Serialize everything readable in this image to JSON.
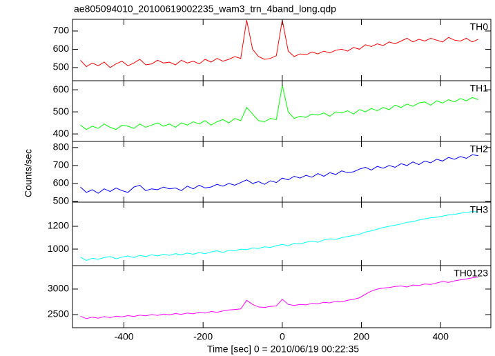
{
  "chart_data": [
    {
      "type": "line",
      "title": "ae805094010_20100619002235_wam3_trn_4band_long.qdp",
      "x": [
        -510,
        -495,
        -480,
        -465,
        -450,
        -435,
        -420,
        -405,
        -390,
        -375,
        -360,
        -345,
        -330,
        -315,
        -300,
        -285,
        -270,
        -255,
        -240,
        -225,
        -210,
        -195,
        -180,
        -165,
        -150,
        -135,
        -120,
        -105,
        -90,
        -75,
        -60,
        -45,
        -30,
        -15,
        0,
        15,
        30,
        45,
        60,
        75,
        90,
        105,
        120,
        135,
        150,
        165,
        180,
        195,
        210,
        225,
        240,
        255,
        270,
        285,
        300,
        315,
        330,
        345,
        360,
        375,
        390,
        405,
        420,
        435,
        450,
        465,
        480,
        495
      ],
      "series": [
        {
          "name": "TH0",
          "color": "#ff0000",
          "values": [
            540,
            505,
            525,
            510,
            530,
            500,
            520,
            535,
            510,
            525,
            545,
            515,
            520,
            540,
            525,
            530,
            515,
            540,
            525,
            535,
            520,
            545,
            530,
            550,
            535,
            545,
            560,
            550,
            760,
            600,
            560,
            545,
            550,
            565,
            760,
            590,
            560,
            575,
            570,
            585,
            575,
            590,
            580,
            595,
            600,
            590,
            610,
            600,
            625,
            615,
            630,
            620,
            640,
            630,
            645,
            660,
            640,
            655,
            645,
            660,
            650,
            640,
            665,
            650,
            645,
            660,
            640,
            655
          ]
        }
      ],
      "xlim": [
        -530,
        527
      ],
      "xticks": [
        -400,
        -200,
        0,
        200,
        400
      ],
      "ylim": [
        428,
        764
      ],
      "yticks": [
        500,
        600,
        700
      ]
    },
    {
      "type": "line",
      "x": [
        -510,
        -495,
        -480,
        -465,
        -450,
        -435,
        -420,
        -405,
        -390,
        -375,
        -360,
        -345,
        -330,
        -315,
        -300,
        -285,
        -270,
        -255,
        -240,
        -225,
        -210,
        -195,
        -180,
        -165,
        -150,
        -135,
        -120,
        -105,
        -90,
        -75,
        -60,
        -45,
        -30,
        -15,
        0,
        15,
        30,
        45,
        60,
        75,
        90,
        105,
        120,
        135,
        150,
        165,
        180,
        195,
        210,
        225,
        240,
        255,
        270,
        285,
        300,
        315,
        330,
        345,
        360,
        375,
        390,
        405,
        420,
        435,
        450,
        465,
        480,
        495
      ],
      "series": [
        {
          "name": "TH1",
          "color": "#00ff00",
          "values": [
            440,
            420,
            435,
            425,
            445,
            430,
            420,
            440,
            435,
            425,
            445,
            430,
            440,
            450,
            435,
            445,
            430,
            450,
            440,
            455,
            445,
            460,
            440,
            455,
            465,
            450,
            470,
            460,
            520,
            490,
            460,
            455,
            470,
            465,
            620,
            500,
            470,
            480,
            475,
            490,
            485,
            495,
            480,
            500,
            495,
            505,
            490,
            510,
            500,
            515,
            505,
            520,
            510,
            530,
            520,
            535,
            525,
            540,
            545,
            530,
            550,
            540,
            555,
            545,
            560,
            550,
            565,
            555
          ]
        }
      ],
      "xlim": [
        -530,
        527
      ],
      "xticks": [
        -400,
        -200,
        0,
        200,
        400
      ],
      "ylim": [
        366,
        641
      ],
      "yticks": [
        400,
        500,
        600
      ]
    },
    {
      "type": "line",
      "ylabel": "Counts/sec",
      "x": [
        -510,
        -495,
        -480,
        -465,
        -450,
        -435,
        -420,
        -405,
        -390,
        -375,
        -360,
        -345,
        -330,
        -315,
        -300,
        -285,
        -270,
        -255,
        -240,
        -225,
        -210,
        -195,
        -180,
        -165,
        -150,
        -135,
        -120,
        -105,
        -90,
        -75,
        -60,
        -45,
        -30,
        -15,
        0,
        15,
        30,
        45,
        60,
        75,
        90,
        105,
        120,
        135,
        150,
        165,
        180,
        195,
        210,
        225,
        240,
        255,
        270,
        285,
        300,
        315,
        330,
        345,
        360,
        375,
        390,
        405,
        420,
        435,
        450,
        465,
        480,
        495
      ],
      "series": [
        {
          "name": "TH2",
          "color": "#0000ff",
          "values": [
            580,
            550,
            565,
            545,
            570,
            555,
            575,
            560,
            550,
            580,
            590,
            560,
            570,
            565,
            580,
            570,
            575,
            560,
            585,
            570,
            590,
            575,
            580,
            595,
            585,
            600,
            590,
            605,
            620,
            600,
            610,
            595,
            615,
            605,
            630,
            620,
            640,
            630,
            645,
            635,
            655,
            640,
            660,
            650,
            670,
            660,
            665,
            680,
            690,
            675,
            695,
            685,
            700,
            690,
            710,
            700,
            720,
            705,
            725,
            715,
            735,
            725,
            745,
            735,
            750,
            740,
            760,
            755
          ]
        }
      ],
      "xlim": [
        -530,
        527
      ],
      "xticks": [
        -400,
        -200,
        0,
        200,
        400
      ],
      "ylim": [
        496,
        834
      ],
      "yticks": [
        500,
        600,
        700,
        800
      ]
    },
    {
      "type": "line",
      "x": [
        -510,
        -495,
        -480,
        -465,
        -450,
        -435,
        -420,
        -405,
        -390,
        -375,
        -360,
        -345,
        -330,
        -315,
        -300,
        -285,
        -270,
        -255,
        -240,
        -225,
        -210,
        -195,
        -180,
        -165,
        -150,
        -135,
        -120,
        -105,
        -90,
        -75,
        -60,
        -45,
        -30,
        -15,
        0,
        15,
        30,
        45,
        60,
        75,
        90,
        105,
        120,
        135,
        150,
        165,
        180,
        195,
        210,
        225,
        240,
        255,
        270,
        285,
        300,
        315,
        330,
        345,
        360,
        375,
        390,
        405,
        420,
        435,
        450,
        465,
        480,
        495
      ],
      "series": [
        {
          "name": "TH3",
          "color": "#00ffff",
          "values": [
            930,
            900,
            920,
            910,
            925,
            935,
            915,
            930,
            940,
            925,
            945,
            935,
            950,
            940,
            955,
            945,
            960,
            950,
            965,
            955,
            970,
            960,
            975,
            985,
            970,
            990,
            985,
            1000,
            995,
            1010,
            1005,
            1020,
            1015,
            1030,
            1040,
            1030,
            1050,
            1045,
            1060,
            1070,
            1060,
            1080,
            1090,
            1085,
            1100,
            1110,
            1120,
            1130,
            1150,
            1160,
            1175,
            1190,
            1200,
            1210,
            1220,
            1235,
            1240,
            1255,
            1265,
            1275,
            1280,
            1290,
            1300,
            1305,
            1315,
            1320,
            1330,
            1325
          ]
        }
      ],
      "xlim": [
        -530,
        527
      ],
      "xticks": [
        -400,
        -200,
        0,
        200,
        400
      ],
      "ylim": [
        855,
        1412
      ],
      "yticks": [
        1000,
        1200
      ]
    },
    {
      "type": "line",
      "xlabel": "Time [sec] 0 = 2010/06/19 00:22:35",
      "x": [
        -510,
        -495,
        -480,
        -465,
        -450,
        -435,
        -420,
        -405,
        -390,
        -375,
        -360,
        -345,
        -330,
        -315,
        -300,
        -285,
        -270,
        -255,
        -240,
        -225,
        -210,
        -195,
        -180,
        -165,
        -150,
        -135,
        -120,
        -105,
        -90,
        -75,
        -60,
        -45,
        -30,
        -15,
        0,
        15,
        30,
        45,
        60,
        75,
        90,
        105,
        120,
        135,
        150,
        165,
        180,
        195,
        210,
        225,
        240,
        255,
        270,
        285,
        300,
        315,
        330,
        345,
        360,
        375,
        390,
        405,
        420,
        435,
        450,
        465,
        480,
        495
      ],
      "series": [
        {
          "name": "TH0123",
          "color": "#ff00ff",
          "values": [
            2470,
            2420,
            2450,
            2430,
            2460,
            2440,
            2470,
            2455,
            2480,
            2465,
            2490,
            2475,
            2500,
            2485,
            2510,
            2495,
            2520,
            2505,
            2530,
            2515,
            2545,
            2530,
            2560,
            2545,
            2570,
            2590,
            2600,
            2610,
            2780,
            2700,
            2650,
            2640,
            2660,
            2670,
            2800,
            2700,
            2680,
            2700,
            2690,
            2720,
            2710,
            2740,
            2730,
            2760,
            2750,
            2780,
            2800,
            2830,
            2900,
            2960,
            3000,
            3020,
            3030,
            3050,
            3060,
            3040,
            3080,
            3070,
            3100,
            3090,
            3120,
            3150,
            3130,
            3160,
            3180,
            3200,
            3220,
            3240
          ]
        }
      ],
      "xlim": [
        -530,
        527
      ],
      "xticks": [
        -400,
        -200,
        0,
        200,
        400
      ],
      "ylim": [
        2243,
        3459
      ],
      "yticks": [
        2500,
        3000
      ]
    }
  ]
}
